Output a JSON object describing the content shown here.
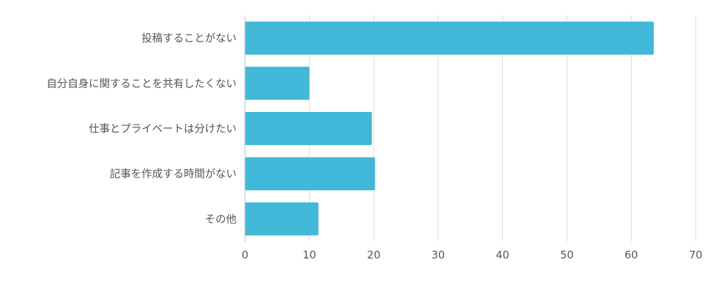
{
  "chart_data": {
    "type": "bar",
    "orientation": "horizontal",
    "categories": [
      "投稿することがない",
      "自分自身に関することを共有したくない",
      "仕事とプライベートは分けたい",
      "記事を作成する時間がない",
      "その他"
    ],
    "values": [
      63.5,
      10,
      19.7,
      20.2,
      11.4
    ],
    "xlim": [
      0,
      70
    ],
    "xticks": [
      "0",
      "10",
      "20",
      "30",
      "40",
      "50",
      "60",
      "70"
    ],
    "grid": true,
    "legend": "none",
    "bar_color": "#42b8d8"
  }
}
